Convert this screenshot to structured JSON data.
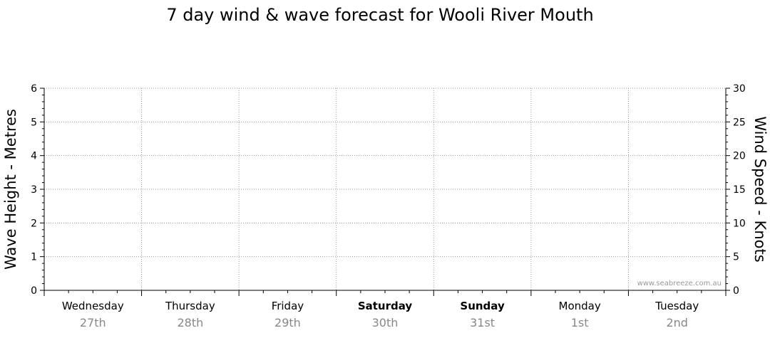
{
  "chart_data": {
    "type": "line",
    "title": "7 day wind & wave forecast for Wooli River Mouth",
    "left_axis": {
      "label": "Wave Height - Metres",
      "ylim": [
        0,
        6
      ],
      "ticks": [
        0,
        1,
        2,
        3,
        4,
        5,
        6
      ]
    },
    "right_axis": {
      "label": "Wind Speed - Knots",
      "ylim": [
        0,
        30
      ],
      "ticks": [
        0,
        5,
        10,
        15,
        20,
        25,
        30
      ]
    },
    "days": [
      {
        "name": "Wednesday",
        "date": "27th",
        "bold": false
      },
      {
        "name": "Thursday",
        "date": "28th",
        "bold": false
      },
      {
        "name": "Friday",
        "date": "29th",
        "bold": false
      },
      {
        "name": "Saturday",
        "date": "30th",
        "bold": true
      },
      {
        "name": "Sunday",
        "date": "31st",
        "bold": true
      },
      {
        "name": "Monday",
        "date": "1st",
        "bold": false
      },
      {
        "name": "Tuesday",
        "date": "2nd",
        "bold": false
      }
    ],
    "series": [],
    "grid": true,
    "watermark": "www.seabreeze.com.au"
  }
}
